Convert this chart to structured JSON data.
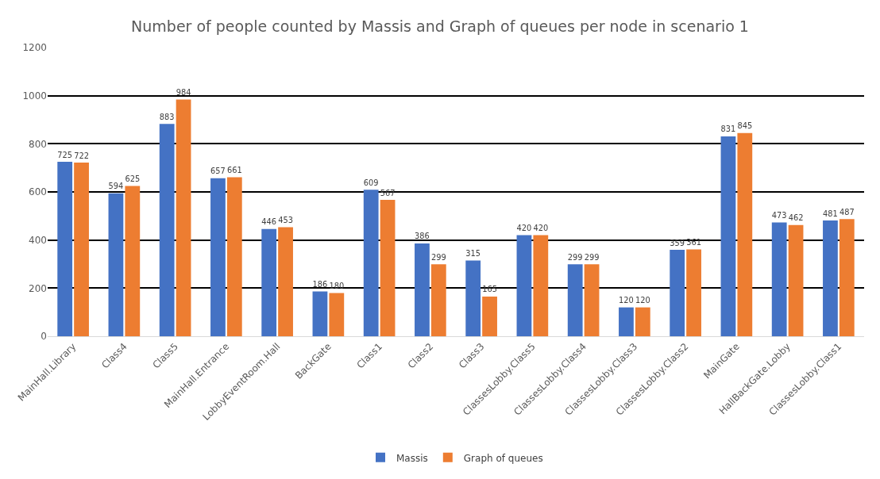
{
  "chart_data": {
    "type": "bar",
    "title": "Number of people counted by Massis and Graph of queues per node in scenario 1",
    "categories": [
      "MainHall.Library",
      "Class4",
      "Class5",
      "MainHall.Entrance",
      "LobbyEventRoom.Hall",
      "BackGate",
      "Class1",
      "Class2",
      "Class3",
      "ClassesLobby.Class5",
      "ClassesLobby.Class4",
      "ClassesLobby.Class3",
      "ClassesLobby.Class2",
      "MainGate",
      "HallBackGate.Lobby",
      "ClassesLobby.Class1"
    ],
    "series": [
      {
        "name": "Massis",
        "color": "#4472c4",
        "values": [
          725,
          594,
          883,
          657,
          446,
          186,
          609,
          386,
          315,
          420,
          299,
          120,
          359,
          831,
          473,
          481
        ]
      },
      {
        "name": "Graph of queues",
        "color": "#ed7d31",
        "values": [
          722,
          625,
          984,
          661,
          453,
          180,
          567,
          299,
          165,
          420,
          299,
          120,
          361,
          845,
          462,
          487
        ]
      }
    ],
    "ylim": [
      0,
      1200
    ],
    "yticks": [
      0,
      200,
      400,
      600,
      800,
      1000,
      1200
    ],
    "grid": "y",
    "legend": "bottom",
    "data_labels": true
  }
}
